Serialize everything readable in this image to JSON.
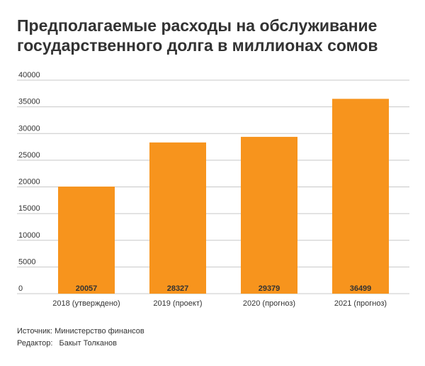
{
  "title": {
    "line1": "Предполагаемые расходы на обслуживание",
    "line2": "государственного долга в миллионах сомов"
  },
  "footer": {
    "source_label": "Источник:",
    "source_value": "Министерство финансов",
    "editor_label": "Редактор:",
    "editor_value": "Бакыт Толканов"
  },
  "colors": {
    "bar": "#F7941D",
    "grid": "#c8c8c8",
    "text": "#333333"
  },
  "chart_data": {
    "type": "bar",
    "categories": [
      "2018 (утверждено)",
      "2019 (проект)",
      "2020 (прогноз)",
      "2021 (прогноз)"
    ],
    "values": [
      20057,
      28327,
      29379,
      36499
    ],
    "yticks": [
      0,
      5000,
      10000,
      15000,
      20000,
      25000,
      30000,
      35000,
      40000
    ],
    "ylim": [
      0,
      40000
    ],
    "grid": true,
    "data_labels": [
      "20057",
      "28327",
      "29379",
      "36499"
    ]
  }
}
